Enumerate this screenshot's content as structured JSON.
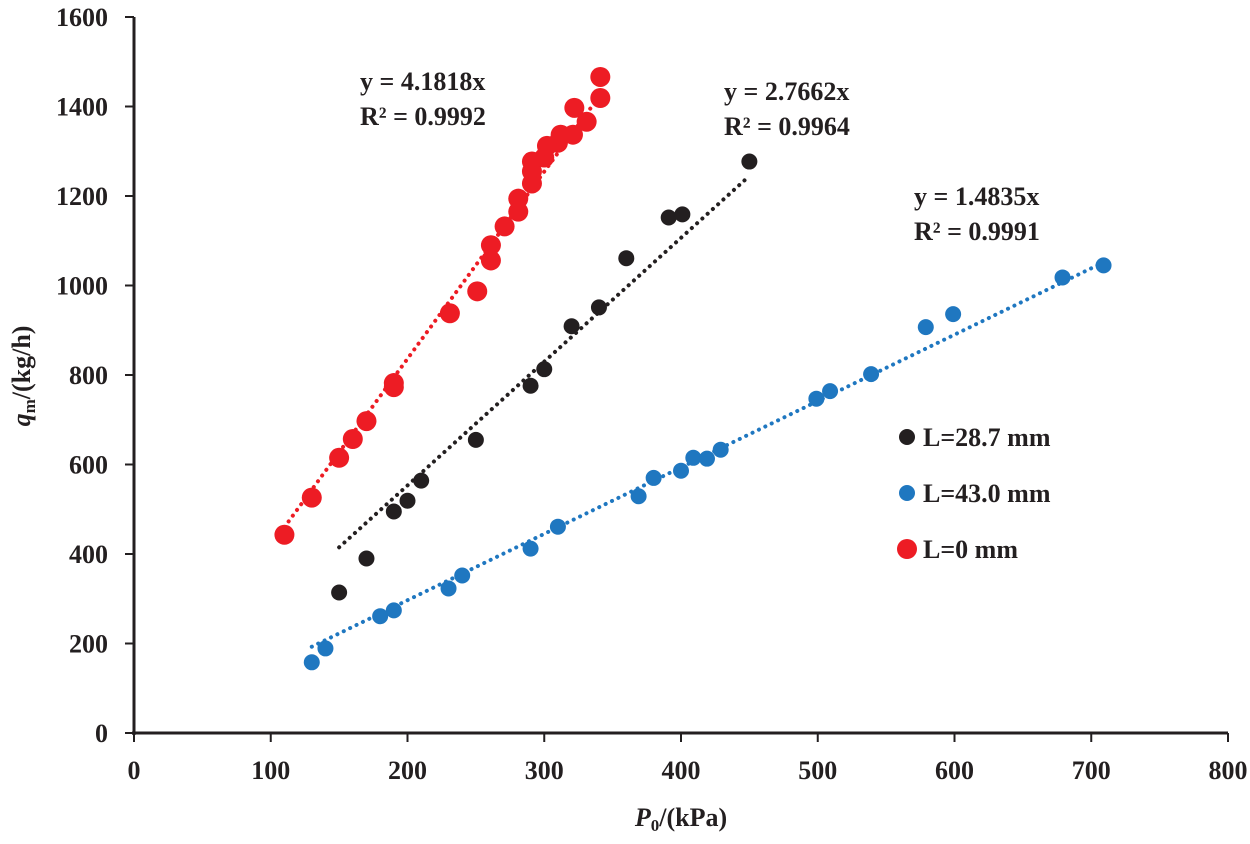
{
  "chart_data": {
    "type": "scatter",
    "xlabel": "P0/(kPa)",
    "xlabel_parts": {
      "main": "P",
      "sub": "0",
      "rest": "/(kPa)"
    },
    "ylabel": "qm/(kg/h)",
    "ylabel_parts": {
      "main": "q",
      "sub": "m",
      "rest": "/(kg/h)"
    },
    "xlim": [
      0,
      800
    ],
    "ylim": [
      0,
      1600
    ],
    "xticks": [
      0,
      100,
      200,
      300,
      400,
      500,
      600,
      700,
      800
    ],
    "yticks": [
      0,
      200,
      400,
      600,
      800,
      1000,
      1200,
      1400,
      1600
    ],
    "grid": false,
    "legend_placement": "right",
    "series": [
      {
        "name": "L=28.7 mm",
        "color": "#231f20",
        "trendline": {
          "slope": 2.7662,
          "x_range": [
            150,
            450
          ],
          "equation": "y = 2.7662x",
          "r2": "R² = 0.9964"
        },
        "points": [
          [
            150,
            314
          ],
          [
            170,
            390
          ],
          [
            190,
            495
          ],
          [
            200,
            519
          ],
          [
            210,
            564
          ],
          [
            250,
            655
          ],
          [
            290,
            776
          ],
          [
            300,
            813
          ],
          [
            320,
            909
          ],
          [
            340,
            951
          ],
          [
            360,
            1061
          ],
          [
            391,
            1152
          ],
          [
            401,
            1159
          ],
          [
            450,
            1277
          ]
        ]
      },
      {
        "name": "L=43.0 mm",
        "color": "#1f77c0",
        "trendline": {
          "slope": 1.4835,
          "x_range": [
            130,
            710
          ],
          "equation": "y = 1.4835x",
          "r2": "R² = 0.9991"
        },
        "points": [
          [
            130,
            158
          ],
          [
            140,
            189
          ],
          [
            180,
            261
          ],
          [
            190,
            274
          ],
          [
            230,
            323
          ],
          [
            240,
            352
          ],
          [
            290,
            412
          ],
          [
            310,
            461
          ],
          [
            369,
            529
          ],
          [
            380,
            570
          ],
          [
            400,
            586
          ],
          [
            409,
            615
          ],
          [
            419,
            613
          ],
          [
            429,
            633
          ],
          [
            499,
            747
          ],
          [
            509,
            764
          ],
          [
            539,
            802
          ],
          [
            579,
            907
          ],
          [
            599,
            936
          ],
          [
            679,
            1018
          ],
          [
            709,
            1045
          ]
        ]
      },
      {
        "name": "L=0 mm",
        "color": "#ed1c24",
        "trendline": {
          "slope": 4.1818,
          "x_range": [
            110,
            341
          ],
          "equation": "y = 4.1818x",
          "r2": "R² = 0.9992"
        },
        "points": [
          [
            110,
            443
          ],
          [
            130,
            526
          ],
          [
            150,
            615
          ],
          [
            160,
            657
          ],
          [
            170,
            697
          ],
          [
            190,
            773
          ],
          [
            190,
            782
          ],
          [
            231,
            938
          ],
          [
            251,
            987
          ],
          [
            261,
            1056
          ],
          [
            261,
            1090
          ],
          [
            271,
            1132
          ],
          [
            281,
            1165
          ],
          [
            281,
            1194
          ],
          [
            291,
            1228
          ],
          [
            291,
            1255
          ],
          [
            291,
            1277
          ],
          [
            300,
            1286
          ],
          [
            302,
            1312
          ],
          [
            310,
            1319
          ],
          [
            312,
            1337
          ],
          [
            321,
            1337
          ],
          [
            322,
            1397
          ],
          [
            331,
            1366
          ],
          [
            341,
            1419
          ],
          [
            341,
            1466
          ]
        ]
      }
    ]
  }
}
